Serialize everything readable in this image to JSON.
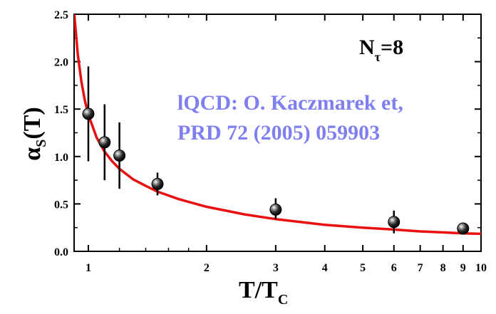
{
  "chart_data": {
    "type": "scatter",
    "title": "",
    "xlabel": {
      "main": "T/T",
      "sub": "C"
    },
    "ylabel": {
      "main": "α",
      "sub": "S",
      "tail": "(T)"
    },
    "x_scale": "log",
    "xlim": [
      0.92,
      10
    ],
    "ylim": [
      0,
      2.5
    ],
    "x_ticks": [
      1,
      2,
      3,
      4,
      5,
      6,
      7,
      8,
      9,
      10
    ],
    "x_tick_labels": [
      "1",
      "2",
      "3",
      "4",
      "5",
      "6",
      "7",
      "8",
      "9",
      "10"
    ],
    "y_ticks": [
      0,
      0.5,
      1.0,
      1.5,
      2.0,
      2.5
    ],
    "y_tick_labels": [
      "0.0",
      "0.5",
      "1.0",
      "1.5",
      "2.0",
      "2.5"
    ],
    "grid": false,
    "series": [
      {
        "type": "scatter",
        "x": [
          1.0,
          1.1,
          1.2,
          1.5,
          3.0,
          6.0,
          9.0
        ],
        "y": [
          1.45,
          1.15,
          1.01,
          0.71,
          0.44,
          0.31,
          0.24
        ],
        "err_low": [
          0.5,
          0.4,
          0.35,
          0.12,
          0.1,
          0.12,
          0.04
        ],
        "err_high": [
          0.5,
          0.4,
          0.35,
          0.12,
          0.12,
          0.12,
          0.04
        ],
        "color": "#000000"
      },
      {
        "type": "line",
        "x": [
          0.92,
          0.94,
          0.96,
          0.98,
          1.0,
          1.05,
          1.1,
          1.15,
          1.2,
          1.3,
          1.4,
          1.5,
          1.7,
          2.0,
          2.5,
          3.0,
          4.0,
          5.0,
          6.0,
          7.0,
          8.0,
          9.0,
          10.0
        ],
        "y": [
          2.52,
          2.08,
          1.79,
          1.59,
          1.44,
          1.2,
          1.05,
          0.95,
          0.87,
          0.76,
          0.69,
          0.63,
          0.55,
          0.47,
          0.39,
          0.34,
          0.28,
          0.25,
          0.23,
          0.21,
          0.2,
          0.19,
          0.185
        ],
        "color": "#e81010"
      }
    ],
    "annotations": {
      "ntau": {
        "main": "N",
        "sub": "τ",
        "tail": "=8"
      },
      "reference_line1": "lQCD: O. Kaczmarek et,",
      "reference_line2": "PRD 72 (2005) 059903"
    }
  }
}
